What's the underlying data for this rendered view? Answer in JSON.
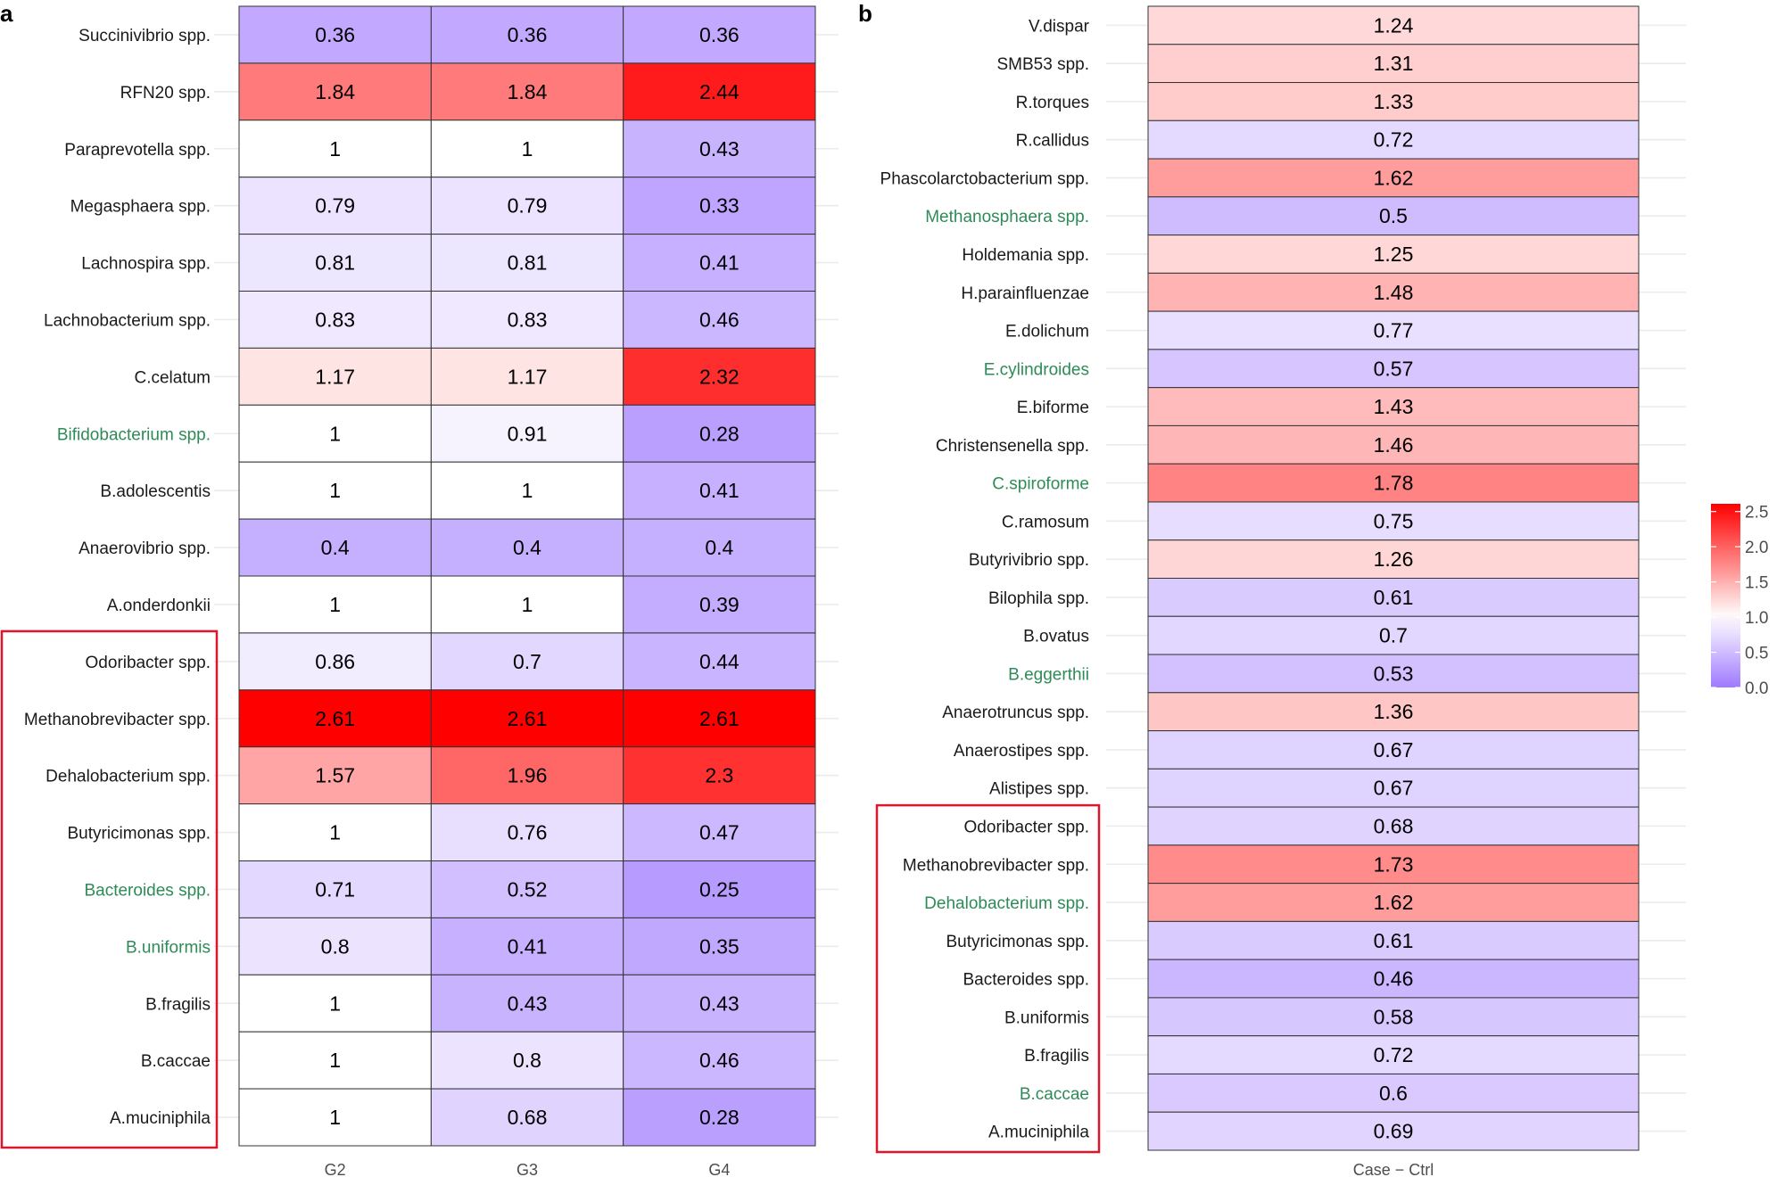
{
  "chart_data": [
    {
      "panel": "a",
      "type": "heatmap",
      "title": "",
      "xlabel": "",
      "ylabel": "",
      "columns": [
        "G2",
        "G3",
        "G4"
      ],
      "rows": [
        "Succinivibrio spp.",
        "RFN20 spp.",
        "Paraprevotella spp.",
        "Megasphaera spp.",
        "Lachnospira spp.",
        "Lachnobacterium spp.",
        "C.celatum",
        "Bifidobacterium spp.",
        "B.adolescentis",
        "Anaerovibrio spp.",
        "A.onderdonkii",
        "Odoribacter spp.",
        "Methanobrevibacter spp.",
        "Dehalobacterium spp.",
        "Butyricimonas spp.",
        "Bacteroides spp.",
        "B.uniformis",
        "B.fragilis",
        "B.caccae",
        "A.muciniphila"
      ],
      "values": [
        [
          0.36,
          0.36,
          0.36
        ],
        [
          1.84,
          1.84,
          2.44
        ],
        [
          1,
          1,
          0.43
        ],
        [
          0.79,
          0.79,
          0.33
        ],
        [
          0.81,
          0.81,
          0.41
        ],
        [
          0.83,
          0.83,
          0.46
        ],
        [
          1.17,
          1.17,
          2.32
        ],
        [
          1,
          0.91,
          0.28
        ],
        [
          1,
          1,
          0.41
        ],
        [
          0.4,
          0.4,
          0.4
        ],
        [
          1,
          1,
          0.39
        ],
        [
          0.86,
          0.7,
          0.44
        ],
        [
          2.61,
          2.61,
          2.61
        ],
        [
          1.57,
          1.96,
          2.3
        ],
        [
          1,
          0.76,
          0.47
        ],
        [
          0.71,
          0.52,
          0.25
        ],
        [
          0.8,
          0.41,
          0.35
        ],
        [
          1,
          0.43,
          0.43
        ],
        [
          1,
          0.8,
          0.46
        ],
        [
          1,
          0.68,
          0.28
        ]
      ],
      "green_labels": [
        "Bifidobacterium spp.",
        "Bacteroides spp.",
        "B.uniformis"
      ],
      "highlight_box_rows": [
        "Odoribacter spp.",
        "A.muciniphila"
      ]
    },
    {
      "panel": "b",
      "type": "heatmap",
      "title": "",
      "xlabel": "",
      "ylabel": "",
      "columns": [
        "Case − Ctrl"
      ],
      "rows": [
        "V.dispar",
        "SMB53 spp.",
        "R.torques",
        "R.callidus",
        "Phascolarctobacterium spp.",
        "Methanosphaera spp.",
        "Holdemania spp.",
        "H.parainfluenzae",
        "E.dolichum",
        "E.cylindroides",
        "E.biforme",
        "Christensenella spp.",
        "C.spiroforme",
        "C.ramosum",
        "Butyrivibrio spp.",
        "Bilophila spp.",
        "B.ovatus",
        "B.eggerthii",
        "Anaerotruncus spp.",
        "Anaerostipes spp.",
        "Alistipes spp.",
        "Odoribacter spp.",
        "Methanobrevibacter spp.",
        "Dehalobacterium spp.",
        "Butyricimonas spp.",
        "Bacteroides spp.",
        "B.uniformis",
        "B.fragilis",
        "B.caccae",
        "A.muciniphila"
      ],
      "values": [
        1.24,
        1.31,
        1.33,
        0.72,
        1.62,
        0.5,
        1.25,
        1.48,
        0.77,
        0.57,
        1.43,
        1.46,
        1.78,
        0.75,
        1.26,
        0.61,
        0.7,
        0.53,
        1.36,
        0.67,
        0.67,
        0.68,
        1.73,
        1.62,
        0.61,
        0.46,
        0.58,
        0.72,
        0.6,
        0.69
      ],
      "green_labels": [
        "Methanosphaera spp.",
        "E.cylindroides",
        "C.spiroforme",
        "B.eggerthii",
        "Dehalobacterium spp.",
        "B.caccae"
      ],
      "highlight_box_rows": [
        "Odoribacter spp.",
        "A.muciniphila"
      ]
    }
  ],
  "legend": {
    "ticks": [
      "2.5",
      "2.0",
      "1.5",
      "1.0",
      "0.5",
      "0.0"
    ],
    "tick_values": [
      2.5,
      2.0,
      1.5,
      1.0,
      0.5,
      0.0
    ],
    "range": [
      0,
      2.61
    ],
    "midpoint": 1.0
  },
  "colors": {
    "low": "#9f79ff",
    "mid": "#ffffff",
    "high": "#ff0000",
    "green_label": "#2e8b57",
    "highlight_box": "#e0142a"
  },
  "panel_labels": {
    "a": "a",
    "b": "b"
  }
}
